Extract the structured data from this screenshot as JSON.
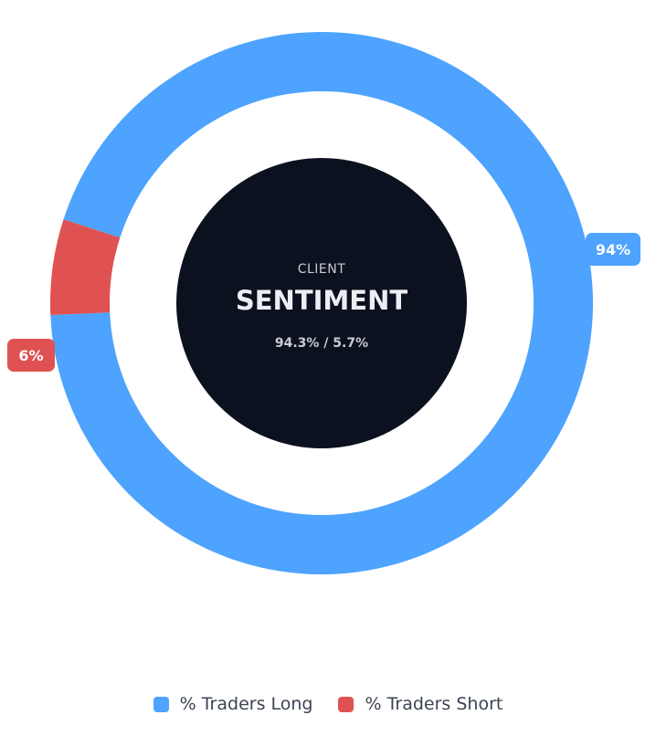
{
  "chart_data": {
    "type": "pie",
    "variant": "donut",
    "series": [
      {
        "name": "% Traders Long",
        "value": 94.3,
        "label": "94%",
        "color": "#4da3fe"
      },
      {
        "name": "% Traders Short",
        "value": 5.7,
        "label": "6%",
        "color": "#e05252"
      }
    ],
    "center": {
      "overline": "CLIENT",
      "title": "SENTIMENT",
      "ratio": "94.3% / 5.7%",
      "color": "#0c1120"
    },
    "legend_position": "bottom"
  }
}
